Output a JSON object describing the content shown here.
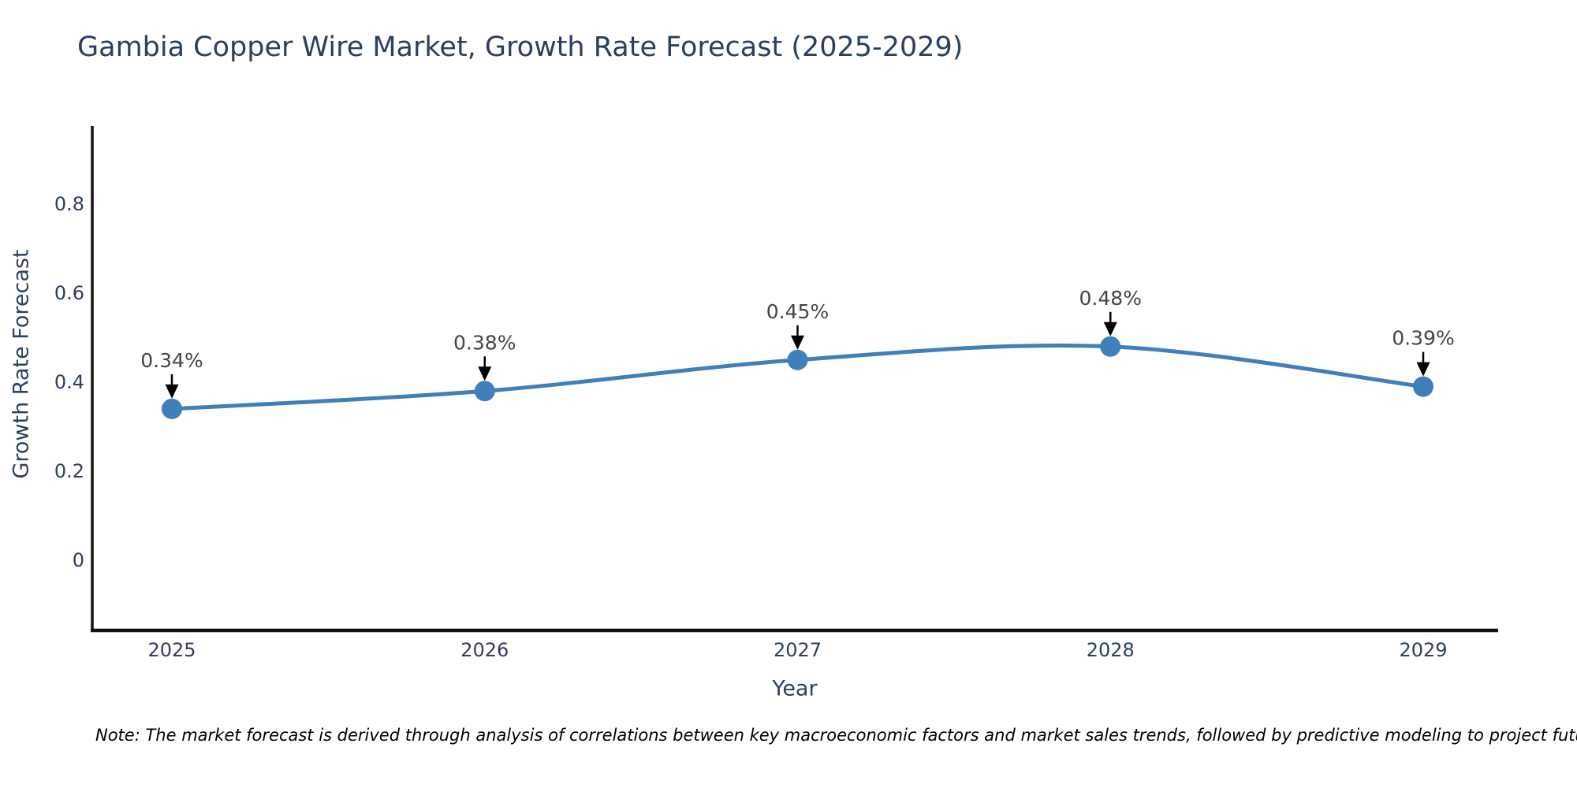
{
  "chart_data": {
    "type": "line",
    "title": "Gambia Copper Wire Market, Growth Rate Forecast (2025-2029)",
    "xlabel": "Year",
    "ylabel": "Growth Rate Forecast",
    "x": [
      2025,
      2026,
      2027,
      2028,
      2029
    ],
    "xtick_labels": [
      "2025",
      "2026",
      "2027",
      "2028",
      "2029"
    ],
    "series": [
      {
        "name": "Growth Rate Forecast",
        "values": [
          0.34,
          0.38,
          0.45,
          0.48,
          0.39
        ],
        "point_labels": [
          "0.34%",
          "0.38%",
          "0.45%",
          "0.48%",
          "0.39%"
        ]
      }
    ],
    "ytick_values": [
      0,
      0.2,
      0.4,
      0.6,
      0.8
    ],
    "ytick_labels": [
      "0",
      "0.2",
      "0.4",
      "0.6",
      "0.8"
    ],
    "ylim": [
      -0.161,
      0.975
    ],
    "xlim": [
      2024.74,
      2029.24
    ],
    "grid": false,
    "legend_visible": false,
    "line_shape": "spline",
    "markers": true,
    "note": "Note: The market forecast is derived through analysis of correlations between key macroeconomic factors and market sales trends, followed by predictive modeling to project future sales"
  },
  "colors": {
    "background": "#ffffff",
    "line": "#3f7fba",
    "marker": "#3f7fba",
    "axis_line": "#111111",
    "tick_label": "#2b3f5e",
    "title": "#2b3f5e",
    "axis_title": "#2b3f5e",
    "annotation_text": "#444444",
    "annotation_arrow": "#000000",
    "note_text": "#000000"
  }
}
